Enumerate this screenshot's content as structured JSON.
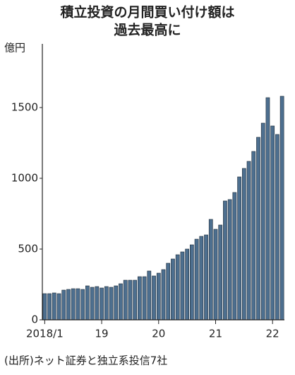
{
  "chart_data": {
    "type": "bar",
    "title": [
      "積立投資の月間買い付け額は",
      "過去最高に"
    ],
    "y_unit": "億円",
    "source": "(出所)ネット証券と独立系投信7社",
    "categories": [
      "2018/1",
      null,
      null,
      null,
      null,
      null,
      null,
      null,
      null,
      null,
      null,
      null,
      "19",
      null,
      null,
      null,
      null,
      null,
      null,
      null,
      null,
      null,
      null,
      null,
      "20",
      null,
      null,
      null,
      null,
      null,
      null,
      null,
      null,
      null,
      null,
      null,
      "21",
      null,
      null,
      null,
      null,
      null,
      null,
      null,
      null,
      null,
      null,
      null,
      "22",
      null,
      null
    ],
    "values": [
      185,
      185,
      190,
      185,
      210,
      215,
      220,
      220,
      215,
      240,
      230,
      235,
      225,
      235,
      230,
      240,
      255,
      280,
      280,
      280,
      305,
      305,
      345,
      310,
      330,
      355,
      400,
      430,
      460,
      480,
      500,
      530,
      570,
      590,
      600,
      710,
      640,
      670,
      840,
      850,
      900,
      1010,
      1070,
      1120,
      1190,
      1290,
      1390,
      1570,
      1370,
      1310,
      1580
    ],
    "color": "#4d6f8f",
    "ylim": [
      0,
      1950
    ],
    "yticks": [
      0,
      500,
      1000,
      1500
    ]
  }
}
